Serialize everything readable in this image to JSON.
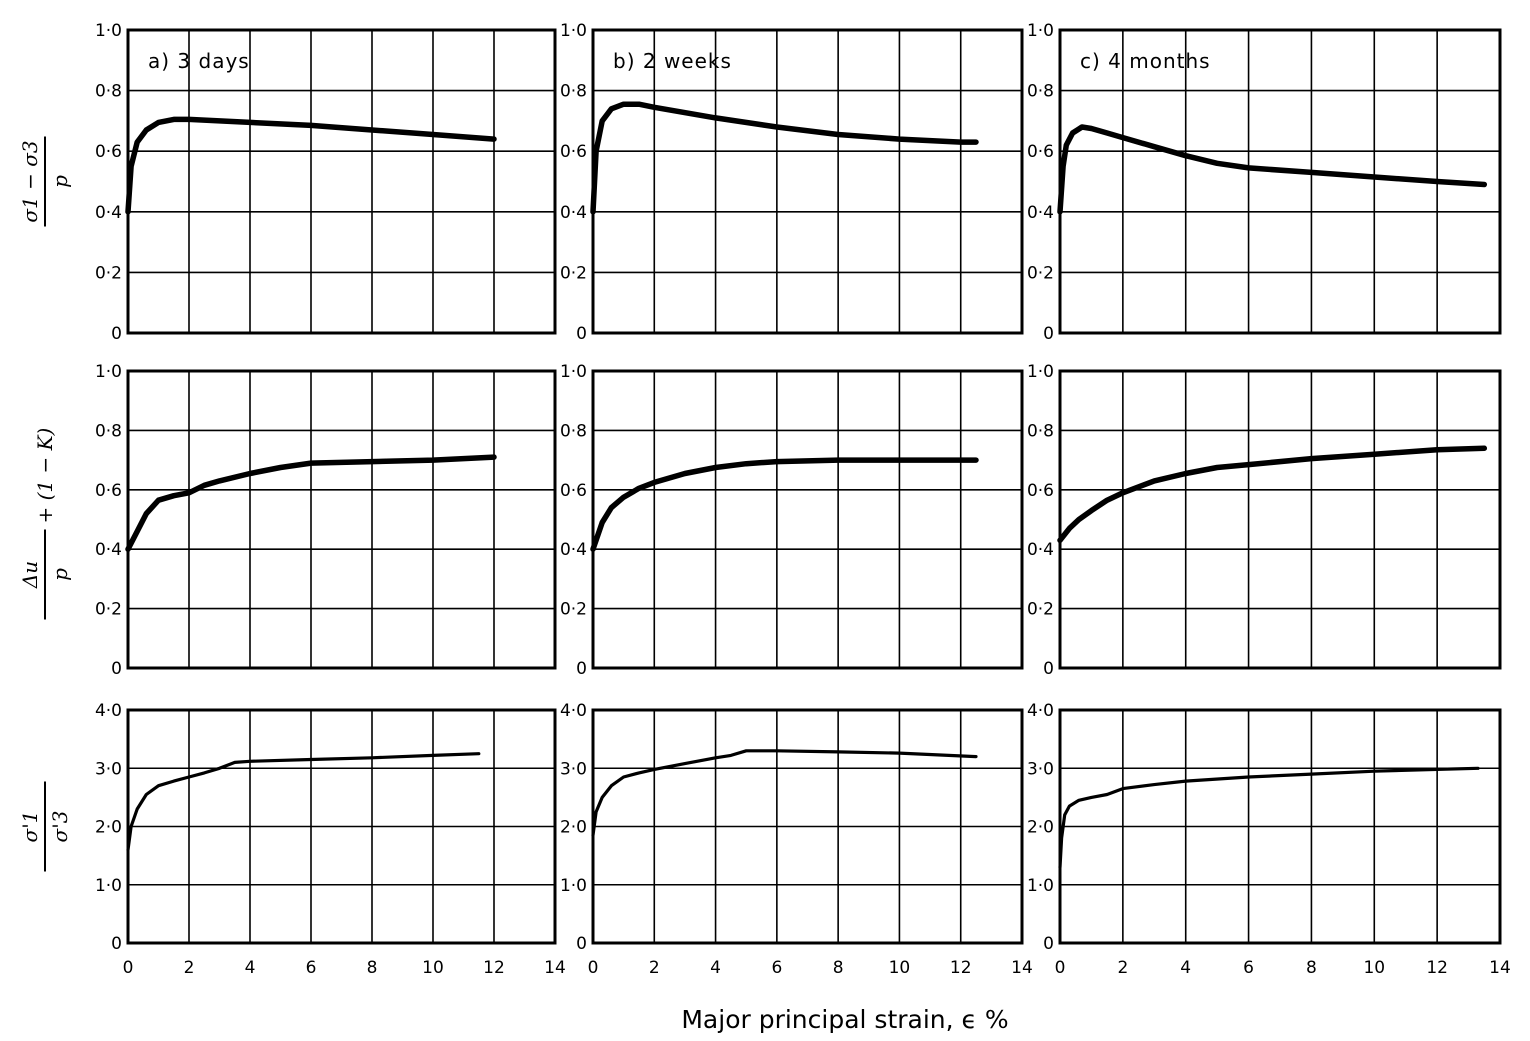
{
  "xlabel": "Major principal strain, ϵ %",
  "chart_data": {
    "type": "line",
    "layout": "3x3 grid of panels; columns share x axis, rows share y axis",
    "column_titles": [
      "a) 3 days",
      "b) 2 weeks",
      "c) 4 months"
    ],
    "xlabel": "Major principal strain, ϵ %",
    "xlim": [
      0,
      14
    ],
    "xticks": [
      0,
      2,
      4,
      6,
      8,
      10,
      12,
      14
    ],
    "rows": [
      {
        "ylabel_num": "σ1 − σ3",
        "ylabel_den": "p",
        "ylabel_suffix": "",
        "ylim": [
          0,
          1.0
        ],
        "yticks": [
          0,
          0.2,
          0.4,
          0.6,
          0.8,
          1.0
        ],
        "ytick_labels": [
          "0",
          "0·2",
          "0·4",
          "0·6",
          "0·8",
          "1·0"
        ]
      },
      {
        "ylabel_num": "Δu",
        "ylabel_den": "p",
        "ylabel_suffix": "+ (1 − K)",
        "ylim": [
          0,
          1.0
        ],
        "yticks": [
          0,
          0.2,
          0.4,
          0.6,
          0.8,
          1.0
        ],
        "ytick_labels": [
          "0",
          "0·2",
          "0·4",
          "0·6",
          "0·8",
          "1·0"
        ]
      },
      {
        "ylabel_num": "σ'1",
        "ylabel_den": "σ'3",
        "ylabel_suffix": "",
        "ylim": [
          0,
          4.0
        ],
        "yticks": [
          0,
          1.0,
          2.0,
          3.0,
          4.0
        ],
        "ytick_labels": [
          "0",
          "1·0",
          "2·0",
          "3·0",
          "4·0"
        ]
      }
    ],
    "panels": [
      {
        "row": 0,
        "col": 0,
        "x": [
          0,
          0.1,
          0.3,
          0.6,
          1,
          1.5,
          2,
          4,
          6,
          8,
          10,
          12
        ],
        "y": [
          0.4,
          0.55,
          0.63,
          0.67,
          0.695,
          0.705,
          0.705,
          0.695,
          0.685,
          0.67,
          0.655,
          0.64
        ]
      },
      {
        "row": 0,
        "col": 1,
        "x": [
          0,
          0.1,
          0.3,
          0.6,
          1,
          1.5,
          2,
          4,
          6,
          8,
          10,
          12,
          12.5
        ],
        "y": [
          0.4,
          0.6,
          0.7,
          0.74,
          0.755,
          0.755,
          0.745,
          0.71,
          0.68,
          0.655,
          0.64,
          0.63,
          0.63
        ]
      },
      {
        "row": 0,
        "col": 2,
        "x": [
          0,
          0.1,
          0.2,
          0.4,
          0.7,
          1,
          1.5,
          2,
          3,
          4,
          5,
          6,
          8,
          10,
          12,
          13.5
        ],
        "y": [
          0.4,
          0.55,
          0.62,
          0.66,
          0.68,
          0.675,
          0.66,
          0.645,
          0.615,
          0.585,
          0.56,
          0.545,
          0.53,
          0.515,
          0.5,
          0.49
        ]
      },
      {
        "row": 1,
        "col": 0,
        "x": [
          0,
          0.3,
          0.6,
          1,
          1.5,
          2,
          2.5,
          3,
          4,
          5,
          6,
          8,
          10,
          12
        ],
        "y": [
          0.4,
          0.46,
          0.52,
          0.565,
          0.58,
          0.59,
          0.615,
          0.63,
          0.655,
          0.675,
          0.69,
          0.695,
          0.7,
          0.71
        ]
      },
      {
        "row": 1,
        "col": 1,
        "x": [
          0,
          0.3,
          0.6,
          1,
          1.5,
          2,
          3,
          4,
          5,
          6,
          8,
          10,
          12.5
        ],
        "y": [
          0.4,
          0.49,
          0.54,
          0.575,
          0.605,
          0.625,
          0.655,
          0.675,
          0.688,
          0.695,
          0.7,
          0.7,
          0.7
        ]
      },
      {
        "row": 1,
        "col": 2,
        "x": [
          0,
          0.3,
          0.6,
          1,
          1.5,
          2,
          3,
          4,
          5,
          6,
          8,
          10,
          12,
          13.5
        ],
        "y": [
          0.43,
          0.47,
          0.5,
          0.53,
          0.565,
          0.59,
          0.63,
          0.655,
          0.675,
          0.685,
          0.705,
          0.72,
          0.735,
          0.74
        ]
      },
      {
        "row": 2,
        "col": 0,
        "x": [
          0,
          0.1,
          0.3,
          0.6,
          1,
          1.5,
          2,
          2.5,
          3,
          3.5,
          4,
          6,
          8,
          10,
          11.5
        ],
        "y": [
          1.6,
          2.0,
          2.3,
          2.55,
          2.7,
          2.78,
          2.85,
          2.92,
          3.0,
          3.1,
          3.12,
          3.15,
          3.18,
          3.22,
          3.25
        ]
      },
      {
        "row": 2,
        "col": 1,
        "x": [
          0,
          0.1,
          0.3,
          0.6,
          1,
          1.5,
          2,
          3,
          4,
          4.5,
          5,
          6,
          8,
          10,
          12.5
        ],
        "y": [
          1.85,
          2.25,
          2.5,
          2.7,
          2.85,
          2.92,
          2.98,
          3.08,
          3.18,
          3.22,
          3.3,
          3.3,
          3.28,
          3.26,
          3.2
        ]
      },
      {
        "row": 2,
        "col": 2,
        "x": [
          0,
          0.05,
          0.15,
          0.3,
          0.6,
          1,
          1.5,
          2,
          3,
          4,
          6,
          8,
          10,
          12,
          13.3
        ],
        "y": [
          1.3,
          1.8,
          2.2,
          2.35,
          2.45,
          2.5,
          2.55,
          2.65,
          2.72,
          2.78,
          2.85,
          2.9,
          2.95,
          2.98,
          3.0
        ]
      }
    ]
  }
}
